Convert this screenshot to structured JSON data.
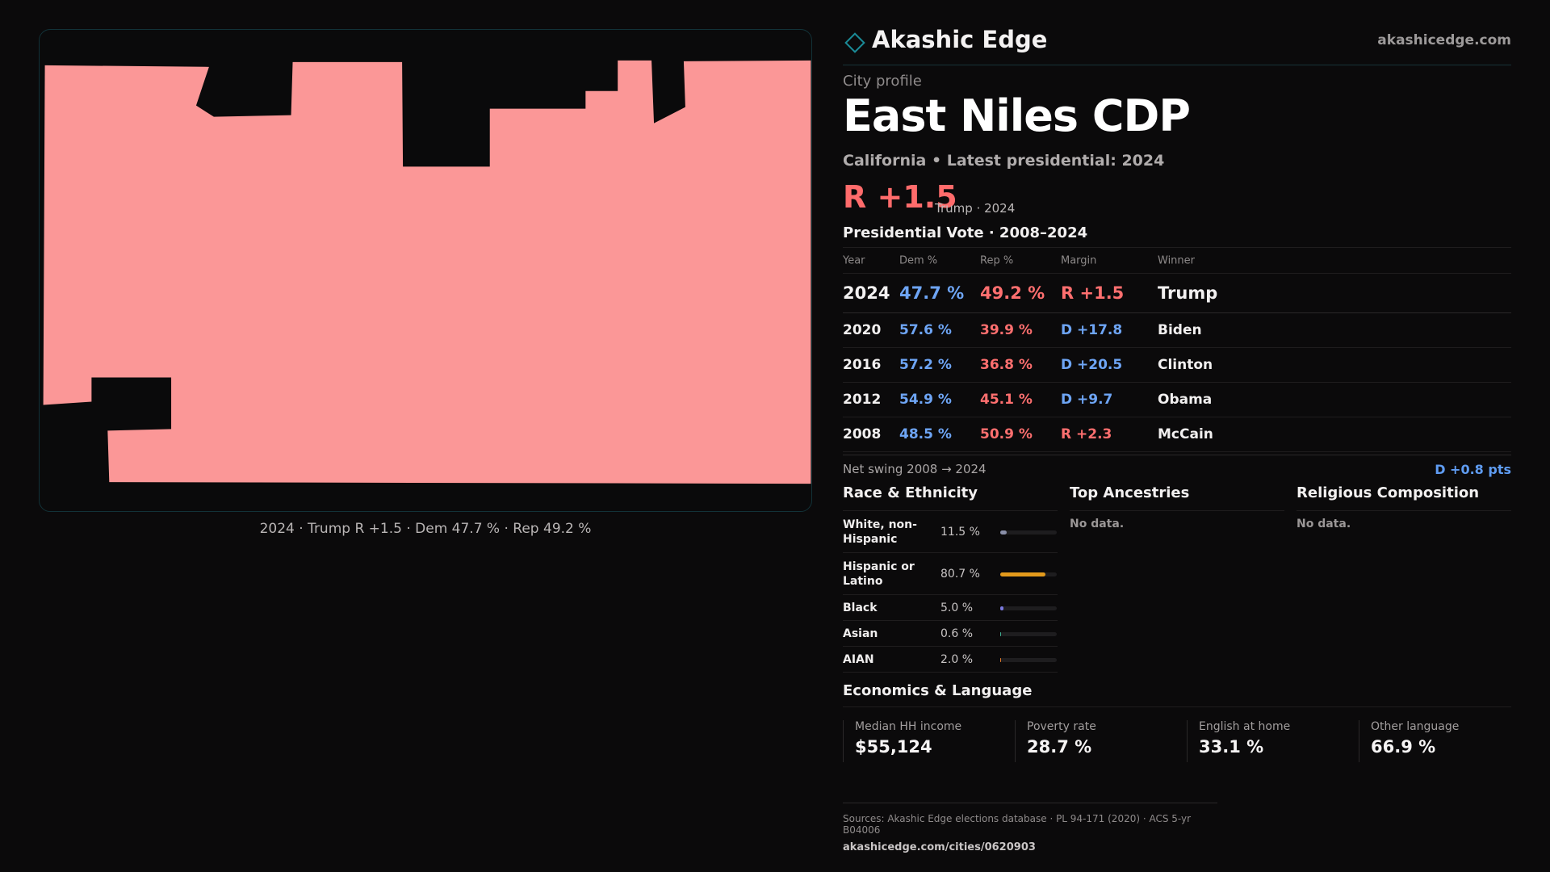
{
  "map": {
    "fill_color": "#fb9797",
    "caption": "2024 · Trump  R +1.5 · Dem 47.7 % · Rep 49.2 %"
  },
  "brand": {
    "name": "Akashic Edge",
    "url": "akashicedge.com",
    "accent": "#1b8b97"
  },
  "profile": {
    "kicker": "City profile",
    "title": "East Niles CDP",
    "subtitle": "California • Latest presidential: 2024",
    "margin": "R +1.5",
    "margin_note": "Trump · 2024"
  },
  "vote": {
    "title": "Presidential Vote · 2008–2024",
    "headers": [
      "Year",
      "Dem %",
      "Rep %",
      "Margin",
      "Winner"
    ],
    "rows": [
      {
        "year": "2024",
        "dem": "47.7 %",
        "rep": "49.2 %",
        "margin": "R +1.5",
        "winner": "Trump",
        "party": "rep"
      },
      {
        "year": "2020",
        "dem": "57.6 %",
        "rep": "39.9 %",
        "margin": "D +17.8",
        "winner": "Biden",
        "party": "dem"
      },
      {
        "year": "2016",
        "dem": "57.2 %",
        "rep": "36.8 %",
        "margin": "D +20.5",
        "winner": "Clinton",
        "party": "dem"
      },
      {
        "year": "2012",
        "dem": "54.9 %",
        "rep": "45.1 %",
        "margin": "D +9.7",
        "winner": "Obama",
        "party": "dem"
      },
      {
        "year": "2008",
        "dem": "48.5 %",
        "rep": "50.9 %",
        "margin": "R +2.3",
        "winner": "McCain",
        "party": "rep"
      }
    ],
    "swing_label": "Net swing 2008 → 2024",
    "swing_value": "D +0.8 pts"
  },
  "race": {
    "title": "Race & Ethnicity",
    "rows": [
      {
        "label": "White, non-Hispanic",
        "pct": "11.5 %",
        "value": 11.5,
        "color": "#8a8fa8"
      },
      {
        "label": "Hispanic or Latino",
        "pct": "80.7 %",
        "value": 80.7,
        "color": "#e39a1c"
      },
      {
        "label": "Black",
        "pct": "5.0 %",
        "value": 5.0,
        "color": "#7b7ae0"
      },
      {
        "label": "Asian",
        "pct": "0.6 %",
        "value": 0.6,
        "color": "#3fae92"
      },
      {
        "label": "AIAN",
        "pct": "2.0 %",
        "value": 2.0,
        "color": "#e07a2a"
      }
    ]
  },
  "ancestries": {
    "title": "Top Ancestries",
    "empty": "No data."
  },
  "religion": {
    "title": "Religious Composition",
    "empty": "No data."
  },
  "economics": {
    "title": "Economics & Language",
    "items": [
      {
        "label": "Median HH income",
        "value": "$55,124"
      },
      {
        "label": "Poverty rate",
        "value": "28.7 %"
      },
      {
        "label": "English at home",
        "value": "33.1 %"
      },
      {
        "label": "Other language",
        "value": "66.9 %"
      }
    ]
  },
  "sources": {
    "line": "Sources: Akashic Edge elections database · PL 94-171 (2020) · ACS 5-yr B04006",
    "url": "akashicedge.com/cities/0620903"
  }
}
